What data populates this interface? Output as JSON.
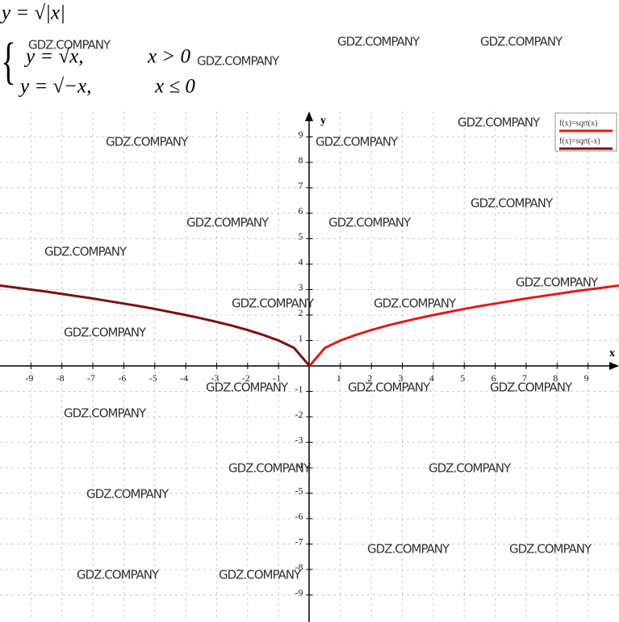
{
  "chart_data": {
    "type": "line",
    "annotations": [
      "y = √|x|",
      "y = √x,",
      "x > 0",
      "y = √−x,",
      "x ≤ 0"
    ],
    "xlabel": "x",
    "ylabel": "y",
    "x": [
      -10,
      -9.5,
      -9,
      -8.5,
      -8,
      -7.5,
      -7,
      -6.5,
      -6,
      -5.5,
      -5,
      -4.5,
      -4,
      -3.5,
      -3,
      -2.5,
      -2,
      -1.5,
      -1,
      -0.5,
      0,
      0.5,
      1,
      1.5,
      2,
      2.5,
      3,
      3.5,
      4,
      4.5,
      5,
      5.5,
      6,
      6.5,
      7,
      7.5,
      8,
      8.5,
      9,
      9.5,
      10
    ],
    "series": [
      {
        "name": "f(x)=sqrt(x)",
        "color": "#e31b1b",
        "values": [
          null,
          null,
          null,
          null,
          null,
          null,
          null,
          null,
          null,
          null,
          null,
          null,
          null,
          null,
          null,
          null,
          null,
          null,
          null,
          null,
          0,
          0.71,
          1,
          1.22,
          1.41,
          1.58,
          1.73,
          1.87,
          2,
          2.12,
          2.24,
          2.35,
          2.45,
          2.55,
          2.65,
          2.74,
          2.83,
          2.92,
          3,
          3.08,
          3.16
        ]
      },
      {
        "name": "f(x)=sqrt(-x)",
        "color": "#7b1212",
        "values": [
          3.16,
          3.08,
          3,
          2.92,
          2.83,
          2.74,
          2.65,
          2.55,
          2.45,
          2.35,
          2.24,
          2.12,
          2,
          1.87,
          1.73,
          1.58,
          1.41,
          1.22,
          1,
          0.71,
          0,
          null,
          null,
          null,
          null,
          null,
          null,
          null,
          null,
          null,
          null,
          null,
          null,
          null,
          null,
          null,
          null,
          null,
          null,
          null,
          null
        ]
      }
    ],
    "xlim": [
      -10,
      10
    ],
    "ylim": [
      -10,
      10
    ],
    "xticks": [
      -9,
      -8,
      -7,
      -6,
      -5,
      -4,
      -3,
      -2,
      -1,
      1,
      2,
      3,
      4,
      5,
      6,
      7,
      8,
      9
    ],
    "yticks": [
      -9,
      -8,
      -7,
      -6,
      -5,
      -4,
      -3,
      -2,
      -1,
      1,
      2,
      3,
      4,
      5,
      6,
      7,
      8,
      9
    ],
    "grid": true,
    "legend": "top-right",
    "watermarks": [
      "GDZ.COMPANY",
      "GDZ.COMPANY",
      "GDZ.COMPANY",
      "GDZ.COMPANY",
      "GDZ.COMPANY",
      "GDZ.COMPANY",
      "GDZ.COMPANY",
      "GDZ.COMPANY",
      "GDZ.COMPANY",
      "GDZ.COMPANY",
      "GDZ.COMPANY",
      "GDZ.COMPANY",
      "GDZ.COMPANY",
      "GDZ.COMPANY",
      "GDZ.COMPANY",
      "GDZ.COMPANY",
      "GDZ.COMPANY",
      "GDZ.COMPANY",
      "GDZ.COMPANY",
      "GDZ.COMPANY",
      "GDZ.COMPANY",
      "GDZ.COMPANY",
      "GDZ.COMPANY",
      "GDZ.COMPANY",
      "GDZ.COMPANY",
      "GDZ.COMPANY"
    ]
  }
}
